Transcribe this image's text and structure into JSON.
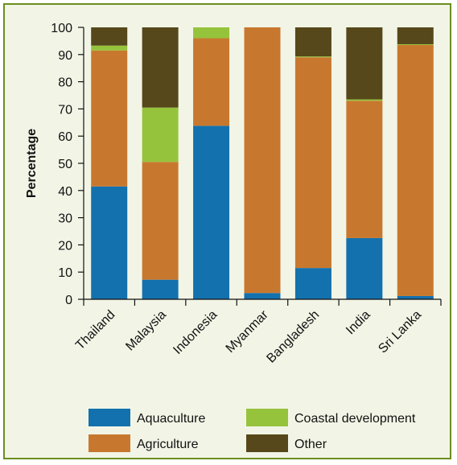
{
  "chart_data": {
    "type": "bar",
    "stacked": true,
    "categories": [
      "Thailand",
      "Malaysia",
      "Indonesia",
      "Myanmar",
      "Bangladesh",
      "India",
      "Sri Lanka"
    ],
    "series": [
      {
        "name": "Aquaculture",
        "color": "#1371ae",
        "values": [
          41.5,
          7.2,
          63.8,
          2.3,
          11.5,
          22.5,
          1.2
        ]
      },
      {
        "name": "Agriculture",
        "color": "#c8782e",
        "values": [
          50.0,
          43.3,
          32.2,
          97.7,
          77.5,
          50.5,
          92.3
        ]
      },
      {
        "name": "Coastal development",
        "color": "#96c33c",
        "values": [
          1.8,
          20.0,
          4.0,
          0.0,
          0.3,
          0.5,
          0.3
        ]
      },
      {
        "name": "Other",
        "color": "#56481a",
        "values": [
          6.7,
          29.5,
          0.0,
          0.0,
          10.7,
          26.5,
          6.2
        ]
      }
    ],
    "xlabel": "",
    "ylabel": "Percentage",
    "ylim": [
      0,
      100
    ],
    "yticks": [
      0,
      10,
      20,
      30,
      40,
      50,
      60,
      70,
      80,
      90,
      100
    ],
    "grid": false,
    "legend_position": "bottom",
    "legend_order": [
      "Aquaculture",
      "Coastal development",
      "Agriculture",
      "Other"
    ]
  }
}
